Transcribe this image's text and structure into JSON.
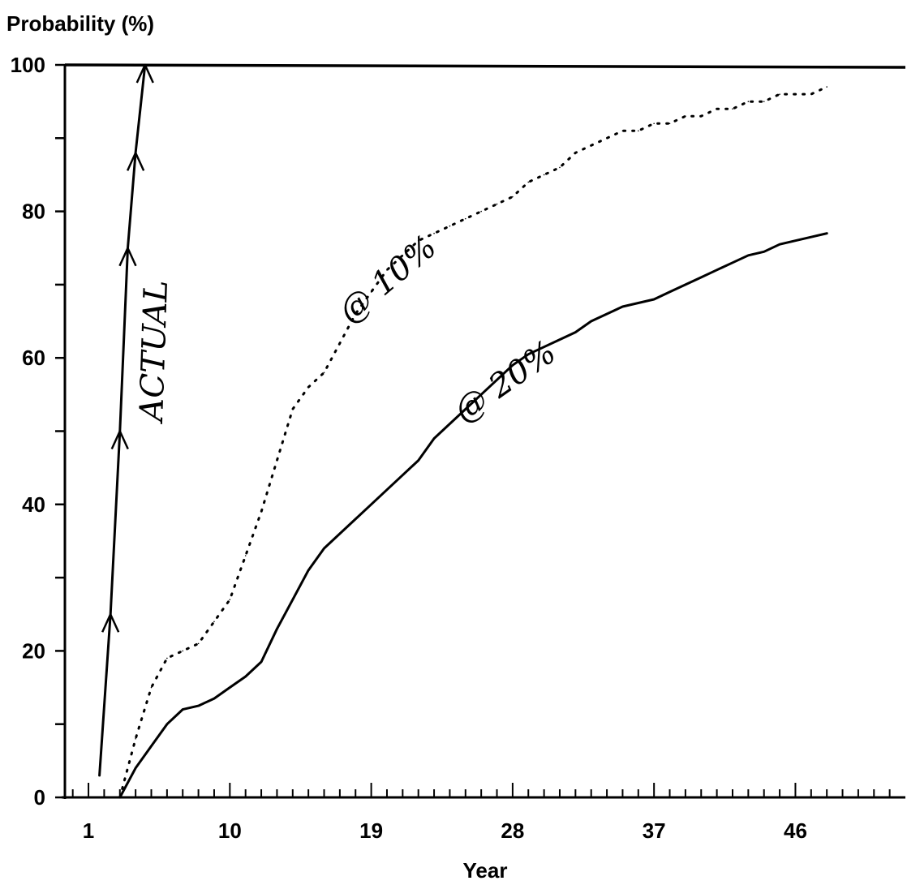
{
  "chart_data": {
    "type": "line",
    "ylabel": "Probability (%)",
    "xlabel": "Year",
    "xlim": [
      -0.5,
      53
    ],
    "ylim": [
      0,
      100
    ],
    "x_ticks": [
      1,
      10,
      19,
      28,
      37,
      46
    ],
    "y_ticks": [
      0,
      20,
      40,
      60,
      80,
      100
    ],
    "grid": false,
    "series": [
      {
        "name": "@ 10%",
        "style": "dotted",
        "points": [
          [
            3,
            0
          ],
          [
            4,
            8
          ],
          [
            5,
            15
          ],
          [
            6,
            19
          ],
          [
            7,
            20
          ],
          [
            8,
            21
          ],
          [
            9,
            24
          ],
          [
            10,
            27
          ],
          [
            11,
            33
          ],
          [
            12,
            39
          ],
          [
            13,
            46
          ],
          [
            14,
            53
          ],
          [
            15,
            56
          ],
          [
            16,
            58
          ],
          [
            17,
            62
          ],
          [
            18,
            66
          ],
          [
            19,
            69
          ],
          [
            20,
            72
          ],
          [
            21,
            74
          ],
          [
            22,
            76
          ],
          [
            23,
            77
          ],
          [
            24,
            78
          ],
          [
            25,
            79
          ],
          [
            26,
            80
          ],
          [
            27,
            81
          ],
          [
            28,
            82
          ],
          [
            29,
            84
          ],
          [
            30,
            85
          ],
          [
            31,
            86
          ],
          [
            32,
            88
          ],
          [
            33,
            89
          ],
          [
            34,
            90
          ],
          [
            35,
            91
          ],
          [
            36,
            91
          ],
          [
            37,
            92
          ],
          [
            38,
            92
          ],
          [
            39,
            93
          ],
          [
            40,
            93
          ],
          [
            41,
            94
          ],
          [
            42,
            94
          ],
          [
            43,
            95
          ],
          [
            44,
            95
          ],
          [
            45,
            96
          ],
          [
            46,
            96
          ],
          [
            47,
            96
          ],
          [
            48,
            97
          ]
        ]
      },
      {
        "name": "@ 20%",
        "style": "solid",
        "points": [
          [
            3,
            0
          ],
          [
            4,
            4
          ],
          [
            5,
            7
          ],
          [
            6,
            10
          ],
          [
            7,
            12
          ],
          [
            8,
            12.5
          ],
          [
            9,
            13.5
          ],
          [
            10,
            15
          ],
          [
            11,
            16.5
          ],
          [
            12,
            18.5
          ],
          [
            13,
            23
          ],
          [
            14,
            27
          ],
          [
            15,
            31
          ],
          [
            16,
            34
          ],
          [
            17,
            36
          ],
          [
            18,
            38
          ],
          [
            19,
            40
          ],
          [
            20,
            42
          ],
          [
            21,
            44
          ],
          [
            22,
            46
          ],
          [
            23,
            49
          ],
          [
            24,
            51
          ],
          [
            25,
            53
          ],
          [
            26,
            55
          ],
          [
            27,
            57
          ],
          [
            28,
            59
          ],
          [
            29,
            60.5
          ],
          [
            30,
            61.5
          ],
          [
            31,
            62.5
          ],
          [
            32,
            63.5
          ],
          [
            33,
            65
          ],
          [
            34,
            66
          ],
          [
            35,
            67
          ],
          [
            36,
            67.5
          ],
          [
            37,
            68
          ],
          [
            38,
            69
          ],
          [
            39,
            70
          ],
          [
            40,
            71
          ],
          [
            41,
            72
          ],
          [
            42,
            73
          ],
          [
            43,
            74
          ],
          [
            44,
            74.5
          ],
          [
            45,
            75.5
          ],
          [
            46,
            76
          ],
          [
            47,
            76.5
          ],
          [
            48,
            77
          ]
        ]
      },
      {
        "name": "Actual",
        "style": "solid-hand",
        "points": [
          [
            1.7,
            3
          ],
          [
            2.4,
            25
          ],
          [
            3,
            50
          ],
          [
            3.5,
            75
          ],
          [
            4,
            88
          ],
          [
            4.6,
            100
          ]
        ]
      }
    ],
    "annotations": [
      "ACTUAL",
      "@ 10%",
      "@ 20%"
    ]
  }
}
